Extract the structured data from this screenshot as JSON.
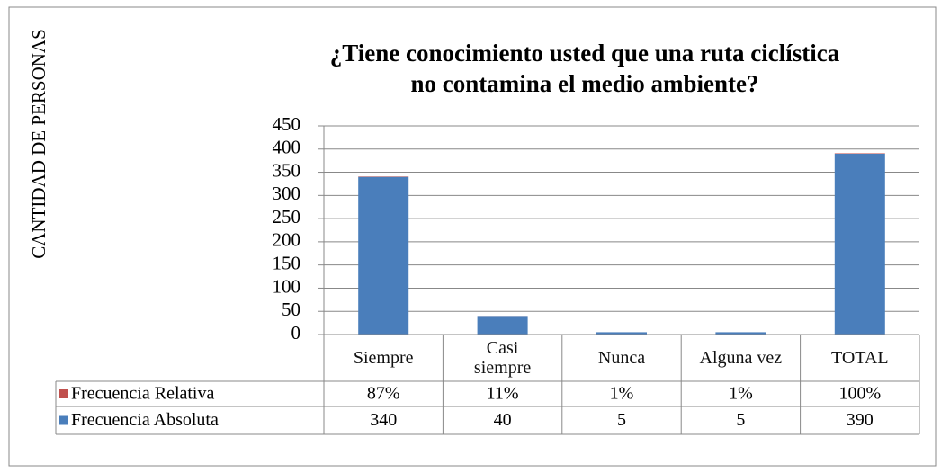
{
  "chart_data": {
    "type": "stacked_bar",
    "title": [
      "¿Tiene conocimiento usted que una ruta ciclística",
      "no contamina el medio ambiente?"
    ],
    "y_label": "CANTIDAD DE PERSONAS",
    "categories": [
      "Siempre",
      "Casi siempre",
      "Nunca",
      "Alguna vez",
      "TOTAL"
    ],
    "series": [
      {
        "name": "Frecuencia Relativa",
        "color": "#c0504d",
        "values": [
          0.87,
          0.11,
          0.01,
          0.01,
          1
        ],
        "value_labels": [
          "87%",
          "11%",
          "1%",
          "1%",
          "100%"
        ]
      },
      {
        "name": "Frecuencia Absoluta",
        "color": "#4a7ebb",
        "values": [
          340,
          40,
          5,
          5,
          390
        ]
      }
    ],
    "stack_order": [
      1,
      0
    ],
    "ylim": [
      0,
      450
    ],
    "yticks": [
      0,
      50,
      100,
      150,
      200,
      250,
      300,
      350,
      400,
      450
    ],
    "grid": true,
    "data_table": true
  }
}
